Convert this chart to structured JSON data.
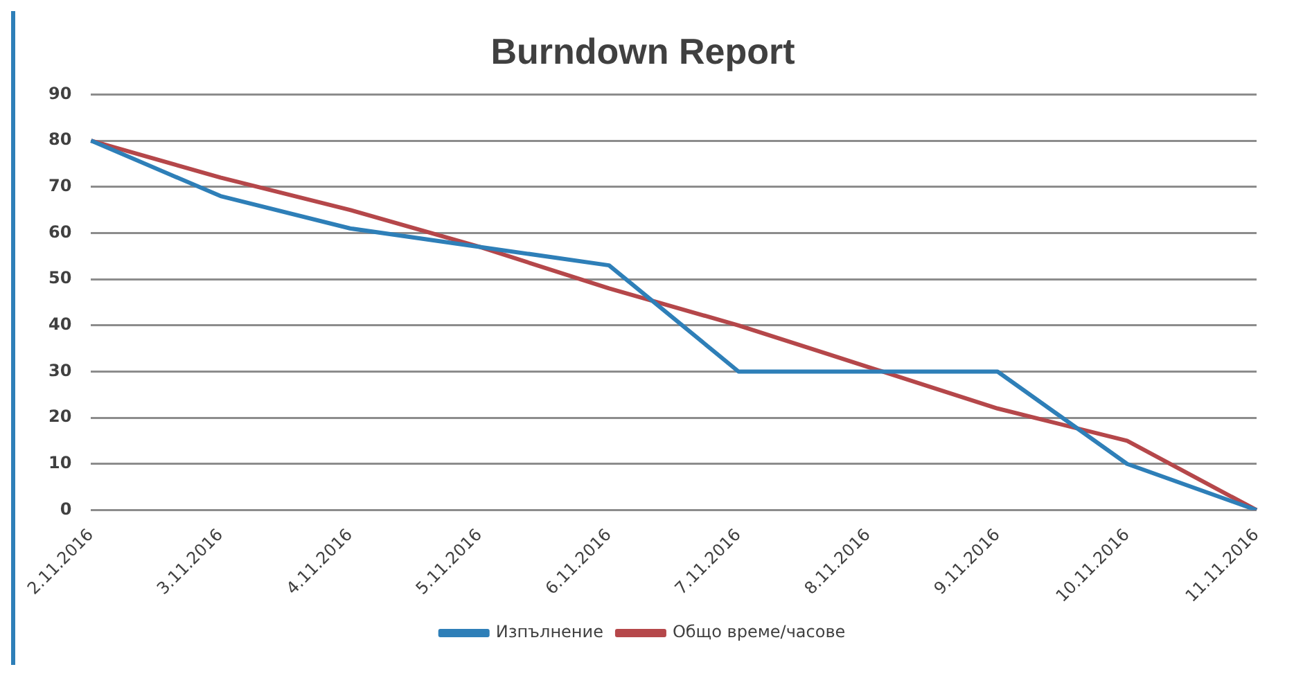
{
  "chart_data": {
    "type": "line",
    "title": "Burndown Report",
    "categories": [
      "2.11.2016",
      "3.11.2016",
      "4.11.2016",
      "5.11.2016",
      "6.11.2016",
      "7.11.2016",
      "8.11.2016",
      "9.11.2016",
      "10.11.2016",
      "11.11.2016"
    ],
    "series": [
      {
        "name": "Изпълнение",
        "color": "#2e7fb8",
        "values": [
          80,
          68,
          61,
          57,
          53,
          30,
          30,
          30,
          10,
          0
        ]
      },
      {
        "name": "Общо време/часове",
        "color": "#b5474a",
        "values": [
          80,
          72,
          65,
          57,
          48,
          40,
          31,
          22,
          15,
          0
        ]
      }
    ],
    "ylim": [
      0,
      90
    ],
    "yticks": [
      0,
      10,
      20,
      30,
      40,
      50,
      60,
      70,
      80,
      90
    ],
    "grid": "y",
    "legend": "bottom",
    "marker": "none",
    "line_style": "solid"
  }
}
